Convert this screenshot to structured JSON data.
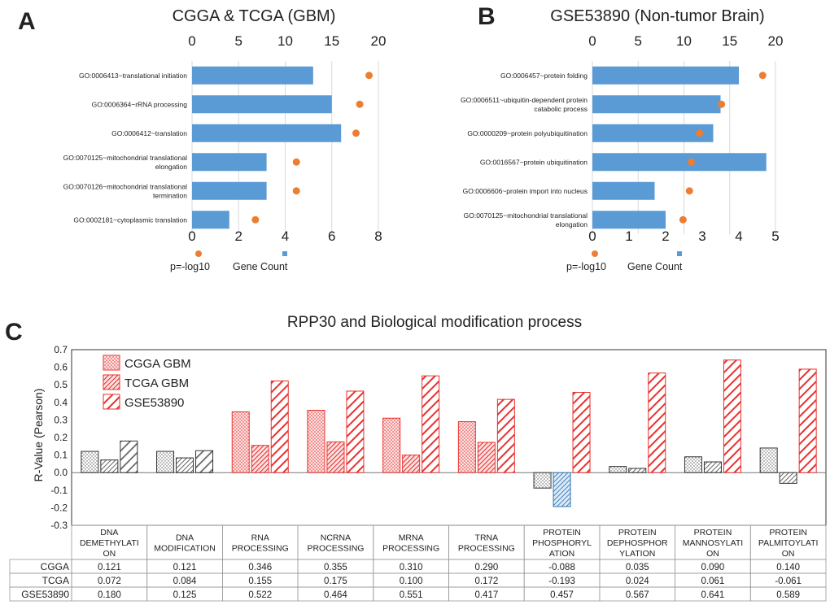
{
  "panel_labels": {
    "a": "A",
    "b": "B",
    "c": "C"
  },
  "colors": {
    "bar_blue": "#5b9bd5",
    "dot_orange": "#ed7d31",
    "red": "#e8312f",
    "pink_fill": "#f7c6c6",
    "grid": "#d9d9d9",
    "grey": "#555555",
    "blue_hatch": "#2e75b6"
  },
  "chart_data": [
    {
      "type": "bar",
      "panel": "A",
      "title": "CGGA & TCGA (GBM)",
      "categories": [
        "GO:0006413~translational initiation",
        "GO:0006364~rRNA processing",
        "GO:0006412~translation",
        "GO:0070125~mitochondrial translational elongation",
        "GO:0070126~mitochondrial translational termination",
        "GO:0002181~cytoplasmic translation"
      ],
      "category_lines": [
        [
          "GO:0006413~translational initiation"
        ],
        [
          "GO:0006364~rRNA processing"
        ],
        [
          "GO:0006412~translation"
        ],
        [
          "GO:0070125~mitochondrial translational",
          "elongation"
        ],
        [
          "GO:0070126~mitochondrial translational",
          "termination"
        ],
        [
          "GO:0002181~cytoplasmic translation"
        ]
      ],
      "series": [
        {
          "name": "Gene Count",
          "axis": "bottom",
          "values": [
            5.2,
            6.0,
            6.4,
            3.2,
            3.2,
            1.6
          ]
        },
        {
          "name": "p=-log10",
          "axis": "top",
          "values": [
            19.0,
            18.0,
            17.6,
            11.2,
            11.2,
            6.8
          ]
        }
      ],
      "top_axis": {
        "range": [
          0,
          20
        ],
        "ticks": [
          "0",
          "5",
          "10",
          "15",
          "20"
        ]
      },
      "bottom_axis": {
        "range": [
          0,
          8
        ],
        "ticks": [
          "0",
          "2",
          "4",
          "6",
          "8"
        ]
      },
      "legend": {
        "dot_label": "p=-log10",
        "bar_label": "Gene Count"
      }
    },
    {
      "type": "bar",
      "panel": "B",
      "title": "GSE53890 (Non-tumor Brain)",
      "categories": [
        "GO:0006457~protein folding",
        "GO:0006511~ubiquitin-dependent protein catabolic process",
        "GO:0000209~protein polyubiquitination",
        "GO:0016567~protein ubiquitination",
        "GO:0006606~protein import into nucleus",
        "GO:0070125~mitochondrial translational elongation"
      ],
      "category_lines": [
        [
          "GO:0006457~protein folding"
        ],
        [
          "GO:0006511~ubiquitin-dependent protein",
          "catabolic process"
        ],
        [
          "GO:0000209~protein polyubiquitination"
        ],
        [
          "GO:0016567~protein ubiquitination"
        ],
        [
          "GO:0006606~protein import into nucleus"
        ],
        [
          "GO:0070125~mitochondrial translational",
          "elongation"
        ]
      ],
      "series": [
        {
          "name": "Gene Count",
          "axis": "bottom",
          "values": [
            4.0,
            3.5,
            3.3,
            4.75,
            1.7,
            2.0
          ]
        },
        {
          "name": "p=-log10",
          "axis": "top",
          "values": [
            18.6,
            14.1,
            11.7,
            10.8,
            10.6,
            9.9
          ]
        }
      ],
      "top_axis": {
        "range": [
          0,
          20
        ],
        "ticks": [
          "0",
          "5",
          "10",
          "15",
          "20"
        ]
      },
      "bottom_axis": {
        "range": [
          0,
          5
        ],
        "ticks": [
          "0",
          "1",
          "2",
          "3",
          "4",
          "5"
        ]
      },
      "legend": {
        "dot_label": "p=-log10",
        "bar_label": "Gene Count"
      }
    },
    {
      "type": "bar",
      "panel": "C",
      "title": "RPP30 and Biological modification process",
      "ylabel": "R-Value (Pearson)",
      "ylim": [
        -0.3,
        0.7
      ],
      "yticks": [
        "-0.3",
        "-0.2",
        "-0.1",
        "0.0",
        "0.1",
        "0.2",
        "0.3",
        "0.4",
        "0.5",
        "0.6",
        "0.7"
      ],
      "categories": [
        "DNA DEMETHYLATION",
        "DNA MODIFICATION",
        "RNA PROCESSING",
        "NCRNA PROCESSING",
        "MRNA PROCESSING",
        "TRNA PROCESSING",
        "PROTEIN PHOSPHORYLATION",
        "PROTEIN DEPHOSPHORYLATION",
        "PROTEIN MANNOSYLATION",
        "PROTEIN PALMITOYLATION"
      ],
      "category_lines": [
        [
          "DNA",
          "DEMETHYLATI",
          "ON"
        ],
        [
          "DNA",
          "MODIFICATION"
        ],
        [
          "RNA",
          "PROCESSING"
        ],
        [
          "NCRNA",
          "PROCESSING"
        ],
        [
          "MRNA",
          "PROCESSING"
        ],
        [
          "TRNA",
          "PROCESSING"
        ],
        [
          "PROTEIN",
          "PHOSPHORYL",
          "ATION"
        ],
        [
          "PROTEIN",
          "DEPHOSPHOR",
          "YLATION"
        ],
        [
          "PROTEIN",
          "MANNOSYLATI",
          "ON"
        ],
        [
          "PROTEIN",
          "PALMITOYLATI",
          "ON"
        ]
      ],
      "highlighted": [
        false,
        false,
        true,
        true,
        true,
        true,
        false,
        false,
        false,
        false
      ],
      "series": [
        {
          "name": "CGGA GBM",
          "row_label": "CGGA",
          "values": [
            0.121,
            0.121,
            0.346,
            0.355,
            0.31,
            0.29,
            -0.088,
            0.035,
            0.09,
            0.14
          ],
          "labels": [
            "0.121",
            "0.121",
            "0.346",
            "0.355",
            "0.310",
            "0.290",
            "-0.088",
            "0.035",
            "0.090",
            "0.140"
          ]
        },
        {
          "name": "TCGA GBM",
          "row_label": "TCGA",
          "values": [
            0.072,
            0.084,
            0.155,
            0.175,
            0.1,
            0.172,
            -0.193,
            0.024,
            0.061,
            -0.061
          ],
          "labels": [
            "0.072",
            "0.084",
            "0.155",
            "0.175",
            "0.100",
            "0.172",
            "-0.193",
            "0.024",
            "0.061",
            "-0.061"
          ]
        },
        {
          "name": "GSE53890",
          "row_label": "GSE53890",
          "values": [
            0.18,
            0.125,
            0.522,
            0.464,
            0.551,
            0.417,
            0.457,
            0.567,
            0.641,
            0.589
          ],
          "labels": [
            "0.180",
            "0.125",
            "0.522",
            "0.464",
            "0.551",
            "0.417",
            "0.457",
            "0.567",
            "0.641",
            "0.589"
          ]
        }
      ],
      "legend": [
        "CGGA GBM",
        "TCGA GBM",
        "GSE53890"
      ]
    }
  ]
}
